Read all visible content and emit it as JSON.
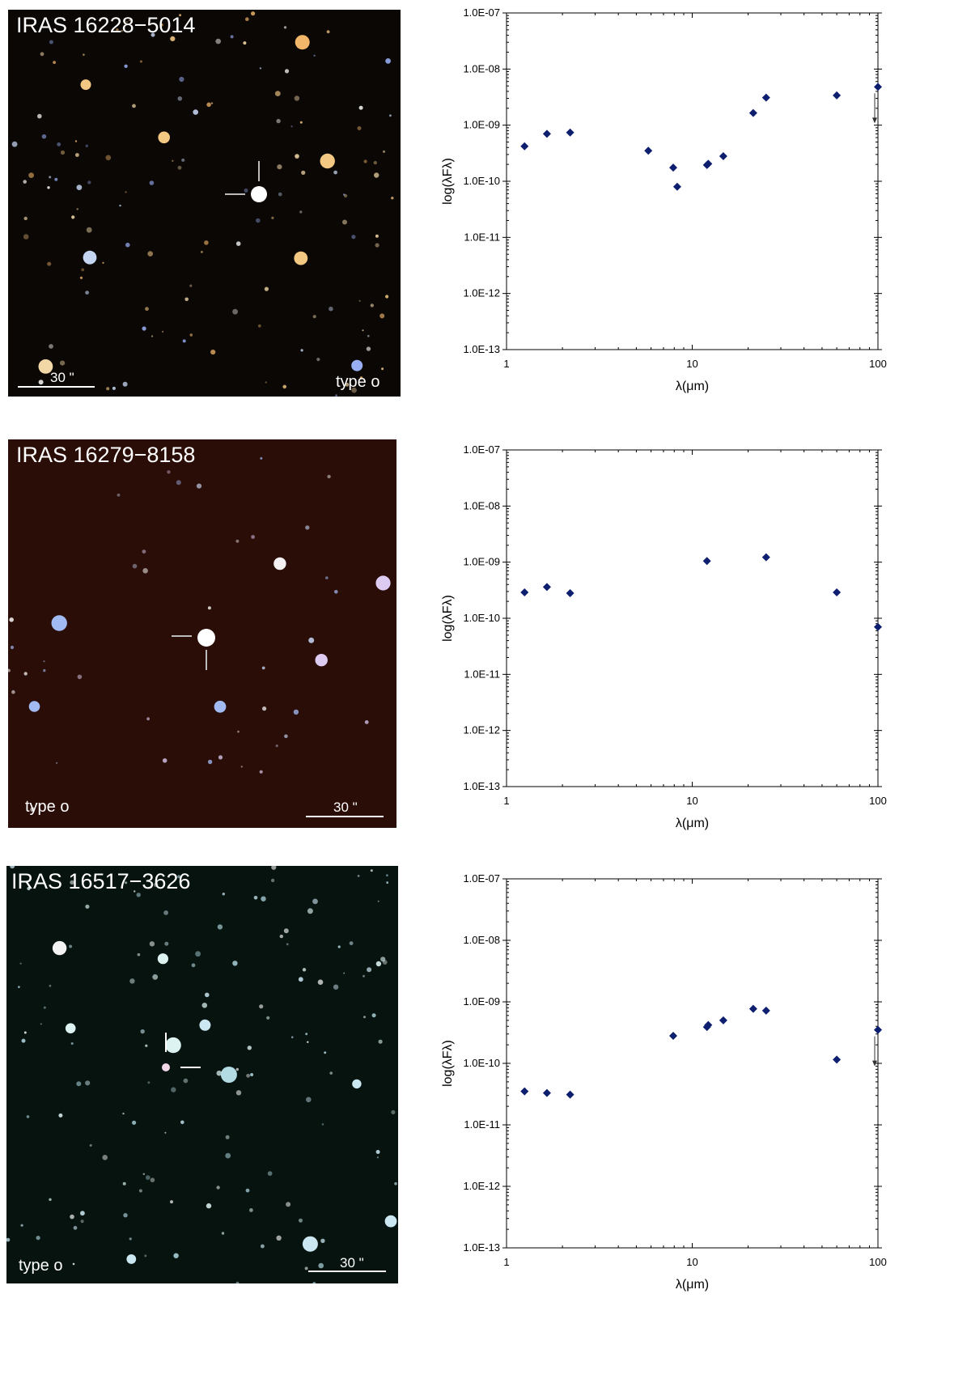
{
  "panels": [
    {
      "title": "IRAS 16228−5014",
      "type_label": "type o",
      "scale_label": "30 \"",
      "sky_tint": "#0b0705"
    },
    {
      "title": "IRAS 16279−8158",
      "type_label": "type o",
      "scale_label": "30 \"",
      "sky_tint": "#2a0d07"
    },
    {
      "title": "IRAS 16517−3626",
      "type_label": "type o",
      "scale_label": "30 \"",
      "sky_tint": "#06130f"
    }
  ],
  "chart_data": [
    {
      "type": "scatter",
      "xscale": "log",
      "yscale": "log",
      "xlabel": "λ(μm)",
      "ylabel": "log(λFλ)",
      "xlim": [
        1,
        100
      ],
      "ylim": [
        1e-13,
        1e-07
      ],
      "xticks": [
        "1",
        "10",
        "100"
      ],
      "yticks": [
        "1.0E-13",
        "1.0E-12",
        "1.0E-11",
        "1.0E-10",
        "1.0E-09",
        "1.0E-08",
        "1.0E-07"
      ],
      "marker_color": "#0d1f6e",
      "points": [
        {
          "x": 1.25,
          "y": 4.2e-10
        },
        {
          "x": 1.65,
          "y": 7e-10
        },
        {
          "x": 2.2,
          "y": 7.4e-10
        },
        {
          "x": 5.8,
          "y": 3.5e-10
        },
        {
          "x": 7.9,
          "y": 1.75e-10
        },
        {
          "x": 8.3,
          "y": 8e-11
        },
        {
          "x": 12.0,
          "y": 1.95e-10
        },
        {
          "x": 12.2,
          "y": 2.05e-10
        },
        {
          "x": 14.7,
          "y": 2.8e-10
        },
        {
          "x": 21.3,
          "y": 1.65e-09
        },
        {
          "x": 25.0,
          "y": 3.1e-09
        },
        {
          "x": 60.0,
          "y": 3.4e-09
        },
        {
          "x": 100.0,
          "y": 4.8e-09,
          "upper_limit": true
        }
      ]
    },
    {
      "type": "scatter",
      "xscale": "log",
      "yscale": "log",
      "xlabel": "λ(μm)",
      "ylabel": "log(λFλ)",
      "xlim": [
        1,
        100
      ],
      "ylim": [
        1e-13,
        1e-07
      ],
      "xticks": [
        "1",
        "10",
        "100"
      ],
      "yticks": [
        "1.0E-13",
        "1.0E-12",
        "1.0E-11",
        "1.0E-10",
        "1.0E-09",
        "1.0E-08",
        "1.0E-07"
      ],
      "marker_color": "#0d1f6e",
      "points": [
        {
          "x": 1.25,
          "y": 2.9e-10
        },
        {
          "x": 1.65,
          "y": 3.6e-10
        },
        {
          "x": 2.2,
          "y": 2.8e-10
        },
        {
          "x": 12.0,
          "y": 1.05e-09
        },
        {
          "x": 25.0,
          "y": 1.22e-09
        },
        {
          "x": 60.0,
          "y": 2.9e-10
        },
        {
          "x": 100.0,
          "y": 7e-11
        }
      ]
    },
    {
      "type": "scatter",
      "xscale": "log",
      "yscale": "log",
      "xlabel": "λ(μm)",
      "ylabel": "log(λFλ)",
      "xlim": [
        1,
        100
      ],
      "ylim": [
        1e-13,
        1e-07
      ],
      "xticks": [
        "1",
        "10",
        "100"
      ],
      "yticks": [
        "1.0E-13",
        "1.0E-12",
        "1.0E-11",
        "1.0E-10",
        "1.0E-09",
        "1.0E-08",
        "1.0E-07"
      ],
      "marker_color": "#0d1f6e",
      "points": [
        {
          "x": 1.25,
          "y": 3.5e-11
        },
        {
          "x": 1.65,
          "y": 3.3e-11
        },
        {
          "x": 2.2,
          "y": 3.1e-11
        },
        {
          "x": 7.9,
          "y": 2.8e-10
        },
        {
          "x": 12.0,
          "y": 3.9e-10
        },
        {
          "x": 12.2,
          "y": 4.2e-10
        },
        {
          "x": 14.7,
          "y": 5e-10
        },
        {
          "x": 21.3,
          "y": 7.7e-10
        },
        {
          "x": 25.0,
          "y": 7.2e-10
        },
        {
          "x": 60.0,
          "y": 1.15e-10
        },
        {
          "x": 100.0,
          "y": 3.5e-10,
          "upper_limit": true
        }
      ]
    }
  ]
}
